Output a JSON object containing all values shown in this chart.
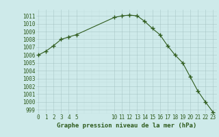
{
  "x": [
    0,
    1,
    2,
    3,
    4,
    5,
    10,
    11,
    12,
    13,
    14,
    15,
    16,
    17,
    18,
    19,
    20,
    21,
    22,
    23
  ],
  "y": [
    1006.0,
    1006.5,
    1007.2,
    1008.0,
    1008.3,
    1008.6,
    1010.8,
    1011.0,
    1011.1,
    1011.0,
    1010.3,
    1009.4,
    1008.6,
    1007.2,
    1006.0,
    1005.0,
    1003.2,
    1001.4,
    1000.0,
    998.7
  ],
  "line_color": "#2d5a1b",
  "marker_color": "#2d5a1b",
  "bg_color": "#ceeaea",
  "grid_color_major": "#9fbfbf",
  "grid_color_minor": "#b8d8d8",
  "title": "Graphe pression niveau de la mer (hPa)",
  "xlabel_ticks": [
    0,
    1,
    2,
    3,
    4,
    5,
    10,
    11,
    12,
    13,
    14,
    15,
    16,
    17,
    18,
    19,
    20,
    21,
    22,
    23
  ],
  "ylim": [
    998.5,
    1011.8
  ],
  "yticks": [
    999,
    1000,
    1001,
    1002,
    1003,
    1004,
    1005,
    1006,
    1007,
    1008,
    1009,
    1010,
    1011
  ],
  "xlim": [
    -0.3,
    23.5
  ],
  "tick_fontsize": 5.5,
  "title_fontsize": 6.5,
  "figwidth": 3.2,
  "figheight": 2.0,
  "dpi": 100
}
